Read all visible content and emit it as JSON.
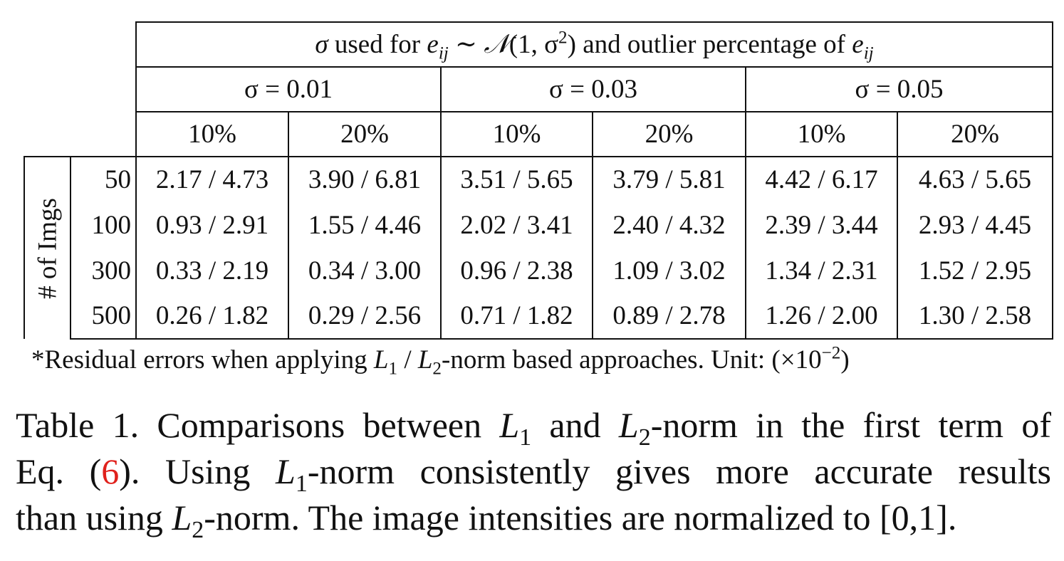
{
  "table": {
    "header_main": {
      "prefix": "σ",
      "text1": " used for ",
      "e": "e",
      "sub_ij": "ij",
      "sim": " ∼ ",
      "N": "𝒩",
      "paren": "(1, σ",
      "sup2": "2",
      "close": ")",
      "text2": " and outlier percentage of "
    },
    "sigma_headers": [
      "σ = 0.01",
      "σ = 0.03",
      "σ = 0.05"
    ],
    "pct_headers": [
      "10%",
      "20%",
      "10%",
      "20%",
      "10%",
      "20%"
    ],
    "row_axis_label": "# of Imgs",
    "rows": [
      {
        "imgs": "50",
        "cells": [
          "2.17 / 4.73",
          "3.90 / 6.81",
          "3.51 / 5.65",
          "3.79 / 5.81",
          "4.42 / 6.17",
          "4.63 / 5.65"
        ]
      },
      {
        "imgs": "100",
        "cells": [
          "0.93 / 2.91",
          "1.55 / 4.46",
          "2.02 / 3.41",
          "2.40 / 4.32",
          "2.39 / 3.44",
          "2.93 / 4.45"
        ]
      },
      {
        "imgs": "300",
        "cells": [
          "0.33 / 2.19",
          "0.34 / 3.00",
          "0.96 / 2.38",
          "1.09 / 3.02",
          "1.34 / 2.31",
          "1.52 / 2.95"
        ]
      },
      {
        "imgs": "500",
        "cells": [
          "0.26 / 1.82",
          "0.29 / 2.56",
          "0.71 / 1.82",
          "0.89 / 2.78",
          "1.26 / 2.00",
          "1.30 / 2.58"
        ]
      }
    ]
  },
  "footnote": {
    "t1": "*Residual errors when applying ",
    "L": "L",
    "one": "1",
    "slash": " / ",
    "two": "2",
    "t2": "-norm based approaches. Unit: (×10",
    "exp": "−2",
    "t3": ")"
  },
  "caption": {
    "l1a": "Table 1. Comparisons between ",
    "L": "L",
    "one": "1",
    "two": "2",
    "l1b": " and ",
    "l1c": "-norm in the first term of",
    "l2a": "Eq. (",
    "ref": "6",
    "l2b": "). Using ",
    "l2c": "-norm consistently gives more accurate results",
    "l3a": "than using ",
    "l3b": "-norm. The image intensities are normalized to [0,1]."
  },
  "colors": {
    "ref_link": "#e0211c",
    "text": "#111111"
  }
}
